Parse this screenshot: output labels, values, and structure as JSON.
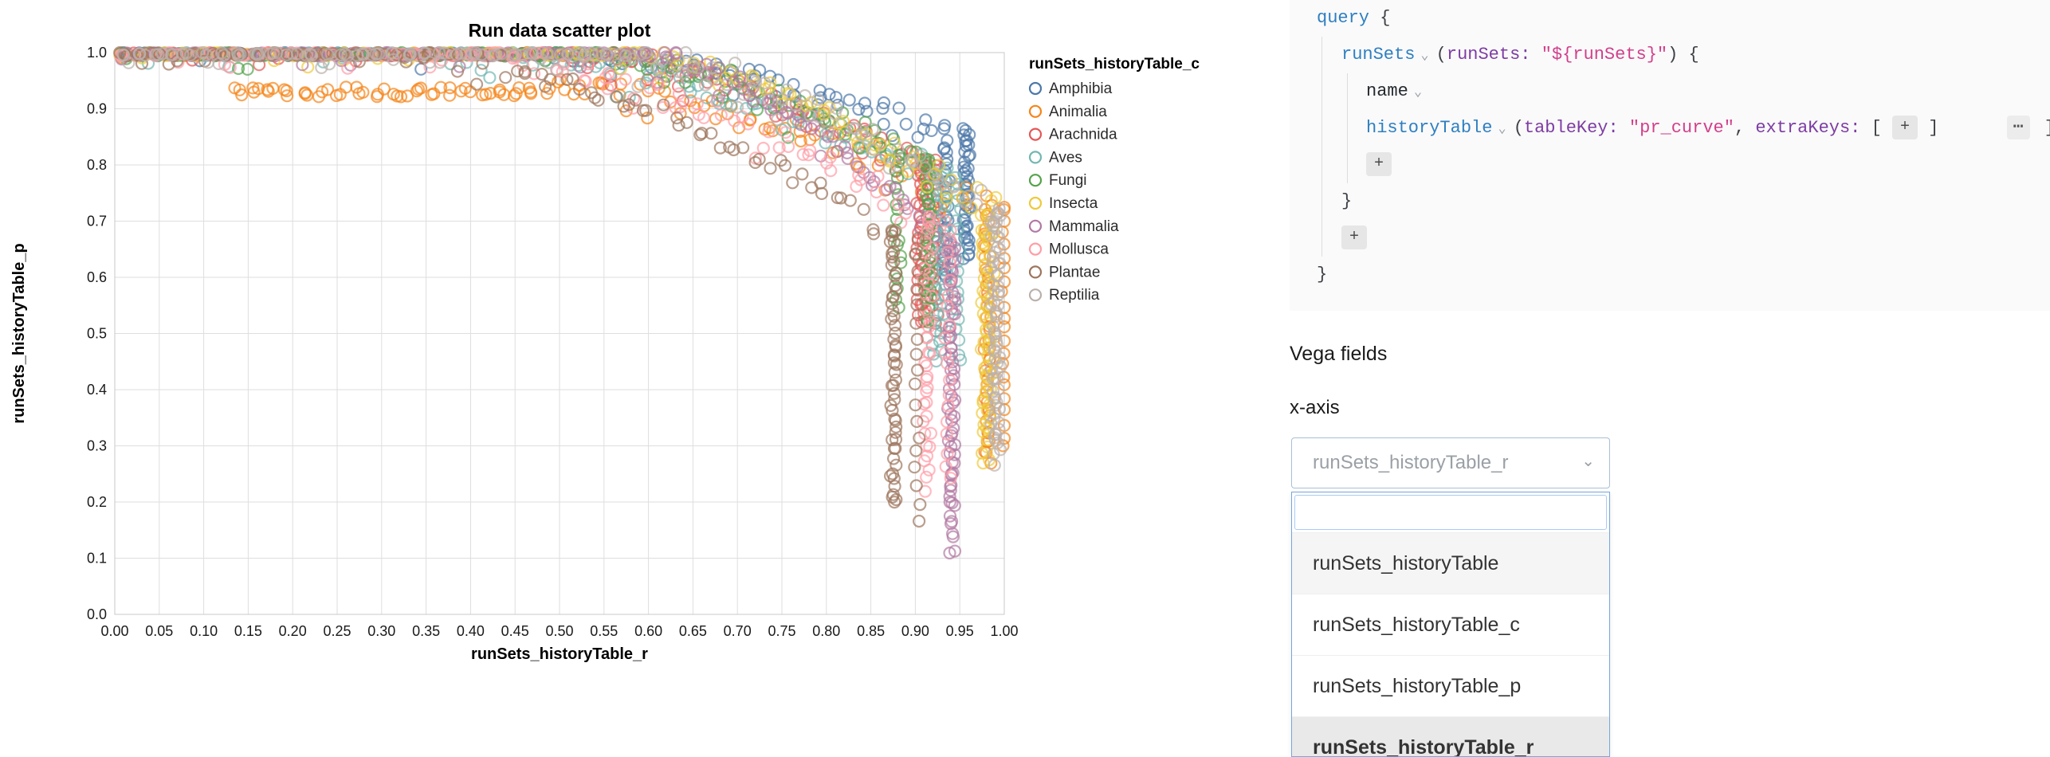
{
  "chart_data": {
    "type": "scatter",
    "title": "Run data scatter plot",
    "xlabel": "runSets_historyTable_r",
    "ylabel": "runSets_historyTable_p",
    "xlim": [
      0.0,
      1.0
    ],
    "ylim": [
      0.0,
      1.0
    ],
    "x_ticks": [
      0.0,
      0.05,
      0.1,
      0.15,
      0.2,
      0.25,
      0.3,
      0.35,
      0.4,
      0.45,
      0.5,
      0.55,
      0.6,
      0.65,
      0.7,
      0.75,
      0.8,
      0.85,
      0.9,
      0.95,
      1.0
    ],
    "y_ticks": [
      0.0,
      0.1,
      0.2,
      0.3,
      0.4,
      0.5,
      0.6,
      0.7,
      0.8,
      0.9,
      1.0
    ],
    "grid": true,
    "legend_title": "runSets_historyTable_c",
    "legend_position": "right",
    "mark": "open-circle",
    "series": [
      {
        "name": "Amphibia",
        "color": "#4C78A8",
        "plateau_end": 0.52,
        "max_recall": 0.95,
        "end_precision": 0.62,
        "runs": 3
      },
      {
        "name": "Animalia",
        "color": "#F58518",
        "plateau_end": 0.5,
        "max_recall": 1.0,
        "end_precision": 0.3,
        "runs": 3,
        "early_dip": {
          "start": 0.13,
          "level": 0.93
        }
      },
      {
        "name": "Arachnida",
        "color": "#E45756",
        "plateau_end": 0.48,
        "max_recall": 0.92,
        "end_precision": 0.52,
        "runs": 3
      },
      {
        "name": "Aves",
        "color": "#72B7B2",
        "plateau_end": 0.45,
        "max_recall": 0.93,
        "end_precision": 0.45,
        "runs": 3
      },
      {
        "name": "Fungi",
        "color": "#54A24B",
        "plateau_end": 0.5,
        "max_recall": 0.9,
        "end_precision": 0.55,
        "runs": 3
      },
      {
        "name": "Insecta",
        "color": "#EECA3B",
        "plateau_end": 0.58,
        "max_recall": 0.99,
        "end_precision": 0.3,
        "runs": 3
      },
      {
        "name": "Mammalia",
        "color": "#B279A2",
        "plateau_end": 0.55,
        "max_recall": 0.94,
        "end_precision": 0.14,
        "runs": 3
      },
      {
        "name": "Mollusca",
        "color": "#FF9DA6",
        "plateau_end": 0.4,
        "max_recall": 0.93,
        "end_precision": 0.24,
        "runs": 3
      },
      {
        "name": "Plantae",
        "color": "#9D755D",
        "plateau_end": 0.32,
        "max_recall": 0.89,
        "end_precision": 0.18,
        "runs": 3
      },
      {
        "name": "Reptilia",
        "color": "#BAB0AC",
        "plateau_end": 0.55,
        "max_recall": 1.0,
        "end_precision": 0.28,
        "runs": 3
      }
    ]
  },
  "query_editor": {
    "palette": {
      "keyword": "#2e7fc1",
      "field": "#2e7fc1",
      "arg": "#7d3ca3",
      "string": "#d23f8b",
      "punct": "#3d4146",
      "plain": "#24292e"
    },
    "lines": [
      {
        "indent": 0,
        "tokens": [
          {
            "text": "query",
            "type": "keyword"
          },
          {
            "text": " {",
            "type": "punct"
          }
        ]
      },
      {
        "indent": 1,
        "tokens": [
          {
            "text": "runSets",
            "type": "field"
          },
          {
            "text": "⌄",
            "type": "chevron"
          },
          {
            "text": "(",
            "type": "punct"
          },
          {
            "text": "runSets:",
            "type": "arg"
          },
          {
            "text": " ",
            "type": "punct"
          },
          {
            "text": "\"${runSets}\"",
            "type": "string"
          },
          {
            "text": ") {",
            "type": "punct"
          }
        ]
      },
      {
        "indent": 2,
        "tokens": [
          {
            "text": "name",
            "type": "plain"
          },
          {
            "text": "⌄",
            "type": "chevron"
          }
        ]
      },
      {
        "indent": 2,
        "tokens": [
          {
            "text": "historyTable",
            "type": "field"
          },
          {
            "text": "⌄",
            "type": "chevron"
          },
          {
            "text": "(",
            "type": "punct"
          },
          {
            "text": "tableKey:",
            "type": "arg"
          },
          {
            "text": " ",
            "type": "punct"
          },
          {
            "text": "\"pr_curve\"",
            "type": "string"
          },
          {
            "text": ", ",
            "type": "punct"
          },
          {
            "text": "extraKeys:",
            "type": "arg"
          },
          {
            "text": " [ ",
            "type": "punct"
          },
          {
            "text": "+",
            "type": "chip"
          },
          {
            "text": " ]",
            "type": "punct"
          }
        ],
        "right_tokens": [
          {
            "text": "⋯",
            "type": "ellipsis"
          },
          {
            "text": "]",
            "type": "punct"
          }
        ]
      },
      {
        "indent": 2,
        "tokens": [
          {
            "text": "+",
            "type": "chip"
          }
        ]
      },
      {
        "indent": 1,
        "tokens": [
          {
            "text": "}",
            "type": "punct"
          }
        ]
      },
      {
        "indent": 1,
        "tokens": [
          {
            "text": "+",
            "type": "chip"
          }
        ]
      },
      {
        "indent": 0,
        "tokens": [
          {
            "text": "}",
            "type": "punct"
          }
        ]
      }
    ]
  },
  "vega_fields": {
    "section_label": "Vega fields",
    "field_label": "x-axis",
    "select": {
      "value": "runSets_historyTable_r",
      "chevron": "⌄",
      "state": "open"
    },
    "dropdown": {
      "search_value": "",
      "options": [
        "runSets_historyTable",
        "runSets_historyTable_c",
        "runSets_historyTable_p",
        "runSets_historyTable_r"
      ],
      "highlighted_index": 0,
      "selected_index": 3
    }
  },
  "ui_colors": {
    "editor_background": "#fafafa",
    "select_border": "#a9bfd4",
    "dropdown_border": "#76a7dc",
    "dropdown_search_border": "#a9ccf5",
    "option_highlight": "#f5f5f5",
    "option_selected": "#e9e9e9"
  }
}
